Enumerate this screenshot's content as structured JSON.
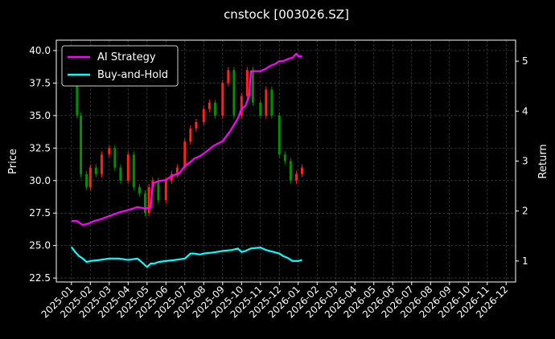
{
  "chart_data": {
    "type": "line",
    "title": "cnstock [003026.SZ]",
    "ylabel_left": "Price",
    "ylabel_right": "Return",
    "ylim_left": [
      22.2,
      40.8
    ],
    "ylim_right": [
      0.58,
      5.42
    ],
    "yticks_left": [
      "22.5",
      "25.0",
      "27.5",
      "30.0",
      "32.5",
      "35.0",
      "37.5",
      "40.0"
    ],
    "yticks_right": [
      "1",
      "2",
      "3",
      "4",
      "5"
    ],
    "xticks": [
      "2025-01",
      "2025-02",
      "2025-03",
      "2025-04",
      "2025-05",
      "2025-06",
      "2025-07",
      "2025-08",
      "2025-09",
      "2025-10",
      "2025-11",
      "2025-12",
      "2026-01",
      "2026-02",
      "2026-03",
      "2026-04",
      "2026-05",
      "2026-06",
      "2026-07",
      "2026-08",
      "2026-09",
      "2026-10",
      "2026-11",
      "2026-12"
    ],
    "xlim_months": [
      -0.8,
      23.5
    ],
    "grid": true,
    "legend_position": "top-left",
    "series": [
      {
        "name": "AI Strategy",
        "axis": "right",
        "color": "#ff00ff",
        "x": [
          0,
          0.3,
          0.6,
          0.9,
          1.2,
          1.5,
          2.0,
          2.5,
          3.0,
          3.5,
          3.9,
          4.2,
          4.3,
          4.6,
          5.0,
          5.3,
          5.5,
          5.7,
          6.0,
          6.2,
          6.5,
          6.8,
          7.0,
          7.5,
          8.0,
          8.4,
          8.8,
          9.0,
          9.2,
          9.4,
          9.5,
          10.0,
          10.3,
          10.5,
          10.8,
          11.0,
          11.2,
          11.5,
          11.7,
          11.9,
          12.0,
          12.2
        ],
        "y": [
          1.8,
          1.8,
          1.72,
          1.75,
          1.8,
          1.83,
          1.9,
          1.97,
          2.02,
          2.08,
          2.05,
          2.07,
          2.55,
          2.6,
          2.62,
          2.7,
          2.73,
          2.75,
          2.9,
          2.95,
          3.05,
          3.1,
          3.15,
          3.3,
          3.4,
          3.6,
          3.85,
          4.05,
          4.1,
          4.3,
          4.8,
          4.8,
          4.85,
          4.9,
          4.95,
          5.0,
          5.0,
          5.05,
          5.07,
          5.15,
          5.1,
          5.1
        ]
      },
      {
        "name": "Buy-and-Hold",
        "axis": "right",
        "color": "#00ffff",
        "x": [
          0,
          0.2,
          0.4,
          0.6,
          0.8,
          1.0,
          1.5,
          2.0,
          2.5,
          3.0,
          3.5,
          3.8,
          4.0,
          4.2,
          4.4,
          4.6,
          5.0,
          5.5,
          6.0,
          6.3,
          6.5,
          6.8,
          7.0,
          7.5,
          8.0,
          8.5,
          8.8,
          9.0,
          9.2,
          9.5,
          10.0,
          10.3,
          10.5,
          10.8,
          11.0,
          11.2,
          11.5,
          11.7,
          12.0,
          12.2
        ],
        "y": [
          1.28,
          1.18,
          1.1,
          1.05,
          0.98,
          1.0,
          1.02,
          1.05,
          1.05,
          1.02,
          1.05,
          0.95,
          0.88,
          0.95,
          0.95,
          0.98,
          1.0,
          1.02,
          1.05,
          1.15,
          1.15,
          1.13,
          1.15,
          1.17,
          1.2,
          1.22,
          1.25,
          1.18,
          1.2,
          1.25,
          1.27,
          1.22,
          1.2,
          1.17,
          1.15,
          1.1,
          1.05,
          1.0,
          1.0,
          1.02
        ]
      },
      {
        "name": "",
        "axis": "left",
        "kind": "candles",
        "up_color": "#ff2020",
        "down_color": "#009000",
        "x": [
          0,
          0.3,
          0.5,
          0.8,
          1.0,
          1.3,
          1.6,
          2.0,
          2.3,
          2.6,
          3.0,
          3.3,
          3.6,
          3.9,
          4.1,
          4.3,
          4.6,
          5.0,
          5.3,
          5.6,
          6.0,
          6.3,
          6.6,
          7.0,
          7.3,
          7.6,
          8.0,
          8.3,
          8.6,
          9.0,
          9.3,
          9.6,
          10.0,
          10.3,
          10.6,
          11.0,
          11.3,
          11.6,
          11.9,
          12.2
        ],
        "y": [
          37.5,
          35.0,
          30.5,
          29.5,
          31.0,
          30.5,
          32.0,
          32.5,
          31.0,
          30.0,
          32.0,
          29.5,
          29.0,
          27.5,
          29.5,
          30.0,
          28.5,
          30.0,
          30.5,
          31.0,
          33.0,
          34.0,
          34.5,
          35.5,
          36.0,
          35.0,
          37.5,
          38.5,
          35.0,
          36.5,
          38.5,
          36.0,
          35.0,
          37.0,
          35.0,
          32.0,
          31.5,
          30.0,
          30.5,
          31.0
        ]
      }
    ]
  }
}
